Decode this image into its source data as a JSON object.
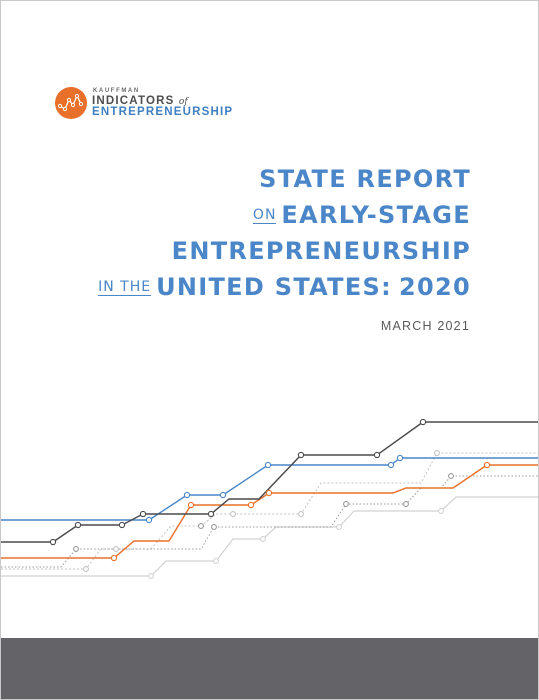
{
  "logo": {
    "org": "KAUFFMAN",
    "indicators": "INDICATORS",
    "of": "of",
    "entrepreneurship": "ENTREPRENEURSHIP",
    "mark_color": "#e8702a"
  },
  "title": {
    "line1": "STATE REPORT",
    "line2_small": "ON",
    "line2": "EARLY-STAGE",
    "line3": "ENTREPRENEURSHIP",
    "line4_small": "IN THE",
    "line4": "UNITED STATES:",
    "line4_year": "2020",
    "color": "#4a86c8"
  },
  "date": "MARCH 2021",
  "colors": {
    "footer": "#646468",
    "dark_line": "#4a4a4c",
    "blue_line": "#4a86c8",
    "orange_line": "#e8702a",
    "light_line": "#c9c9c9"
  }
}
